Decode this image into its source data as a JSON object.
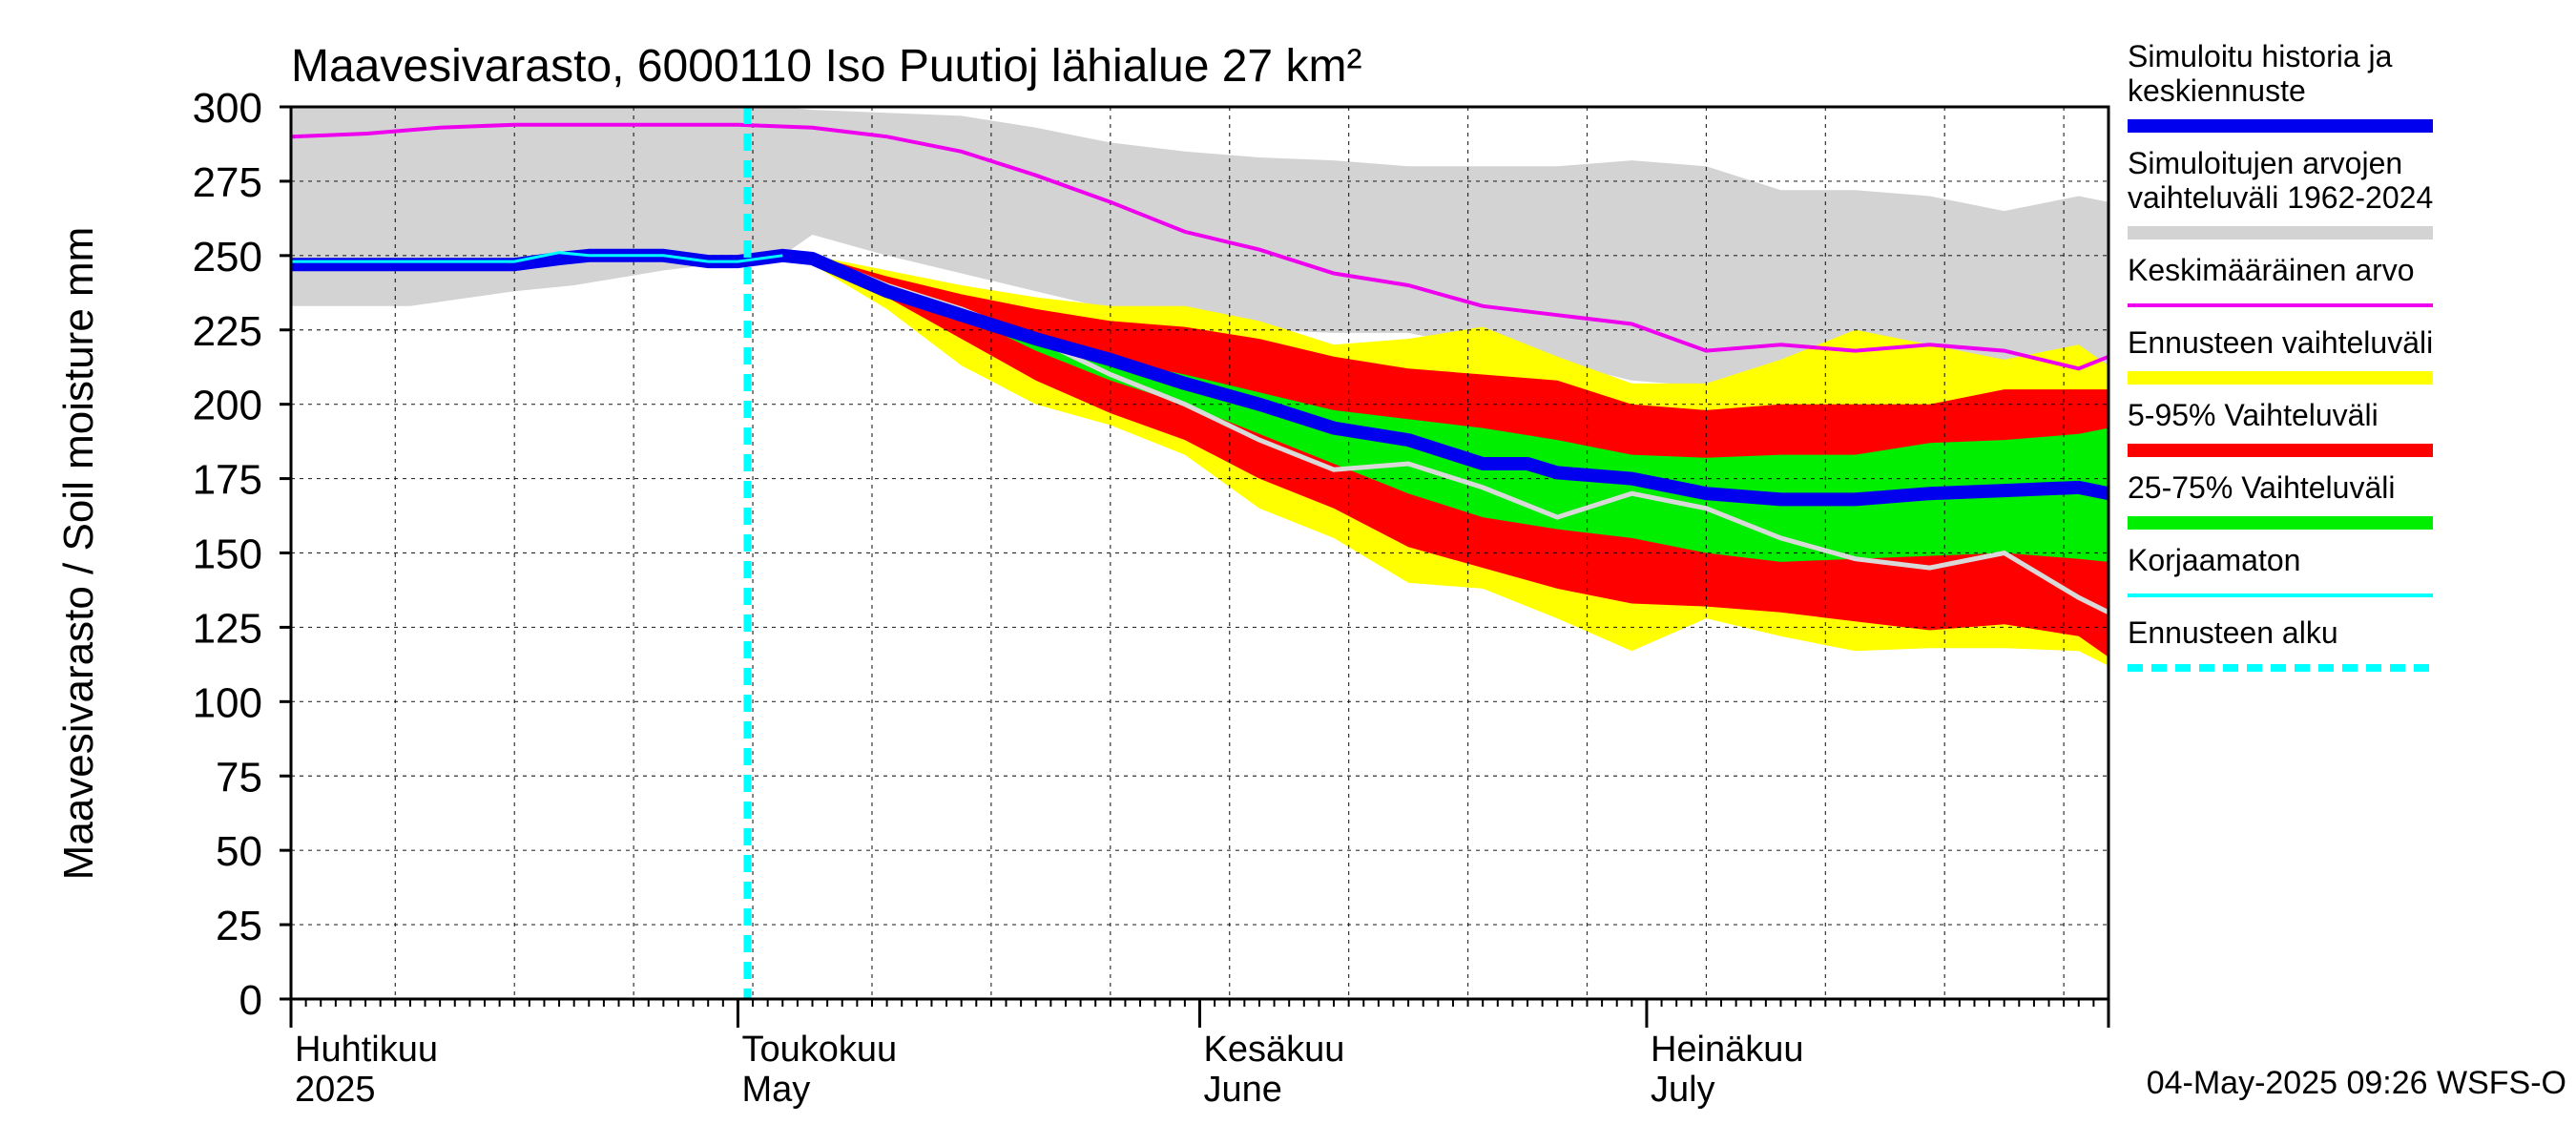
{
  "chart_data": {
    "type": "area",
    "title": "Maavesivarasto, 6000110 Iso Puutioj lähialue 27 km²",
    "ylabel": "Maavesivarasto / Soil moisture   mm",
    "ylim": [
      0,
      300
    ],
    "yticks": [
      "0",
      "25",
      "50",
      "75",
      "100",
      "125",
      "150",
      "175",
      "200",
      "225",
      "250",
      "275",
      "300"
    ],
    "x_start_day": 0,
    "x_end_day": 122,
    "x_note": "x values are days since 1 April 2025",
    "forecast_start_day": 30,
    "month_labels": [
      {
        "day": 0,
        "line1": "Huhtikuu",
        "line2": "2025"
      },
      {
        "day": 30,
        "line1": "Toukokuu",
        "line2": "May"
      },
      {
        "day": 61,
        "line1": "Kesäkuu",
        "line2": "June"
      },
      {
        "day": 91,
        "line1": "Heinäkuu",
        "line2": "July"
      }
    ],
    "timestamp": "04-May-2025 09:26 WSFS-O",
    "legend": [
      {
        "label": "Simuloitu historia ja\nkeskiennuste",
        "color": "#0000ee",
        "style": "thick"
      },
      {
        "label": "Simuloitujen arvojen\nvaihteluväli 1962-2024",
        "color": "#d3d3d3",
        "style": "band"
      },
      {
        "label": "Keskimääräinen arvo",
        "color": "#ee00ee",
        "style": "line"
      },
      {
        "label": "Ennusteen vaihteluväli",
        "color": "#ffff00",
        "style": "band"
      },
      {
        "label": "5-95% Vaihteluväli",
        "color": "#ff0000",
        "style": "band"
      },
      {
        "label": "25-75% Vaihteluväli",
        "color": "#00ee00",
        "style": "band"
      },
      {
        "label": "Korjaamaton",
        "color": "#00ffff",
        "style": "line"
      },
      {
        "label": "Ennusteen alku",
        "color": "#00ffff",
        "style": "dashed"
      }
    ],
    "series": {
      "history_range": {
        "name": "Simuloitujen arvojen vaihteluväli 1962-2024",
        "x": [
          0,
          8,
          15,
          19,
          25,
          30,
          33,
          35,
          40,
          45,
          50,
          55,
          60,
          65,
          70,
          75,
          80,
          85,
          90,
          95,
          100,
          105,
          110,
          115,
          120,
          122
        ],
        "low": [
          233,
          233,
          238,
          240,
          245,
          248,
          250,
          257,
          250,
          244,
          238,
          232,
          226,
          225,
          224,
          224,
          219,
          214,
          208,
          206,
          205,
          210,
          208,
          210,
          208,
          206
        ],
        "high": [
          300,
          300,
          300,
          300,
          300,
          300,
          300,
          299,
          298,
          297,
          293,
          288,
          285,
          283,
          282,
          280,
          280,
          280,
          282,
          280,
          272,
          272,
          270,
          265,
          270,
          268
        ]
      },
      "mean": {
        "name": "Keskimääräinen arvo",
        "x": [
          0,
          5,
          10,
          15,
          20,
          25,
          30,
          35,
          40,
          45,
          50,
          55,
          60,
          65,
          70,
          75,
          80,
          85,
          90,
          95,
          100,
          105,
          110,
          115,
          120,
          122
        ],
        "y": [
          290,
          291,
          293,
          294,
          294,
          294,
          294,
          293,
          290,
          285,
          277,
          268,
          258,
          252,
          244,
          240,
          233,
          230,
          227,
          218,
          220,
          218,
          220,
          218,
          212,
          216
        ]
      },
      "forecast_range": {
        "name": "Ennusteen vaihteluväli",
        "x": [
          33,
          35,
          40,
          45,
          50,
          55,
          60,
          65,
          70,
          75,
          80,
          85,
          90,
          95,
          100,
          105,
          110,
          115,
          120,
          122
        ],
        "low": [
          249,
          247,
          232,
          213,
          200,
          193,
          183,
          165,
          155,
          140,
          138,
          128,
          117,
          128,
          122,
          117,
          118,
          118,
          117,
          112
        ],
        "high": [
          250,
          250,
          245,
          240,
          236,
          233,
          233,
          228,
          220,
          222,
          226,
          216,
          207,
          207,
          215,
          225,
          220,
          215,
          220,
          213
        ]
      },
      "p5_95": {
        "name": "5-95% Vaihteluväli",
        "x": [
          33,
          35,
          40,
          45,
          50,
          55,
          60,
          65,
          70,
          75,
          80,
          85,
          90,
          95,
          100,
          105,
          110,
          115,
          120,
          122
        ],
        "low": [
          249,
          248,
          236,
          222,
          208,
          197,
          188,
          175,
          165,
          152,
          145,
          138,
          133,
          132,
          130,
          127,
          124,
          126,
          122,
          115
        ],
        "high": [
          250,
          250,
          243,
          237,
          232,
          228,
          226,
          222,
          216,
          212,
          210,
          208,
          200,
          198,
          200,
          200,
          200,
          205,
          205,
          205
        ]
      },
      "p25_75": {
        "name": "25-75% Vaihteluväli",
        "x": [
          33,
          35,
          40,
          45,
          50,
          55,
          60,
          65,
          70,
          75,
          80,
          85,
          90,
          95,
          100,
          105,
          110,
          115,
          120,
          122
        ],
        "low": [
          249,
          249,
          240,
          230,
          218,
          208,
          200,
          190,
          180,
          170,
          162,
          158,
          155,
          150,
          147,
          148,
          149,
          150,
          148,
          147
        ],
        "high": [
          250,
          250,
          240,
          232,
          222,
          215,
          210,
          204,
          198,
          195,
          192,
          188,
          183,
          182,
          183,
          183,
          187,
          188,
          190,
          192
        ]
      },
      "uncorrected": {
        "name": "Korjaamaton",
        "x": [
          0,
          5,
          10,
          15,
          18,
          20,
          25,
          28,
          30,
          33
        ],
        "y": [
          248,
          248,
          248,
          248,
          251,
          250,
          250,
          248,
          248,
          250
        ]
      },
      "raw_gray": {
        "name": "Korjaamaton (harmaa)",
        "x": [
          35,
          40,
          45,
          50,
          55,
          60,
          65,
          70,
          75,
          80,
          85,
          90,
          95,
          100,
          105,
          110,
          115,
          120,
          122
        ],
        "y": [
          250,
          240,
          232,
          222,
          210,
          200,
          188,
          178,
          180,
          172,
          162,
          170,
          165,
          155,
          148,
          145,
          150,
          135,
          130
        ]
      },
      "mean_forecast": {
        "name": "Simuloitu historia ja keskiennuste",
        "x": [
          0,
          5,
          10,
          15,
          18,
          20,
          25,
          28,
          30,
          33,
          35,
          40,
          45,
          50,
          55,
          60,
          65,
          70,
          75,
          80,
          83,
          85,
          90,
          95,
          100,
          105,
          110,
          115,
          120,
          122
        ],
        "y": [
          247,
          247,
          247,
          247,
          249,
          250,
          250,
          248,
          248,
          250,
          249,
          238,
          230,
          222,
          215,
          207,
          200,
          192,
          188,
          180,
          180,
          177,
          175,
          170,
          168,
          168,
          170,
          171,
          172,
          170
        ]
      }
    }
  }
}
